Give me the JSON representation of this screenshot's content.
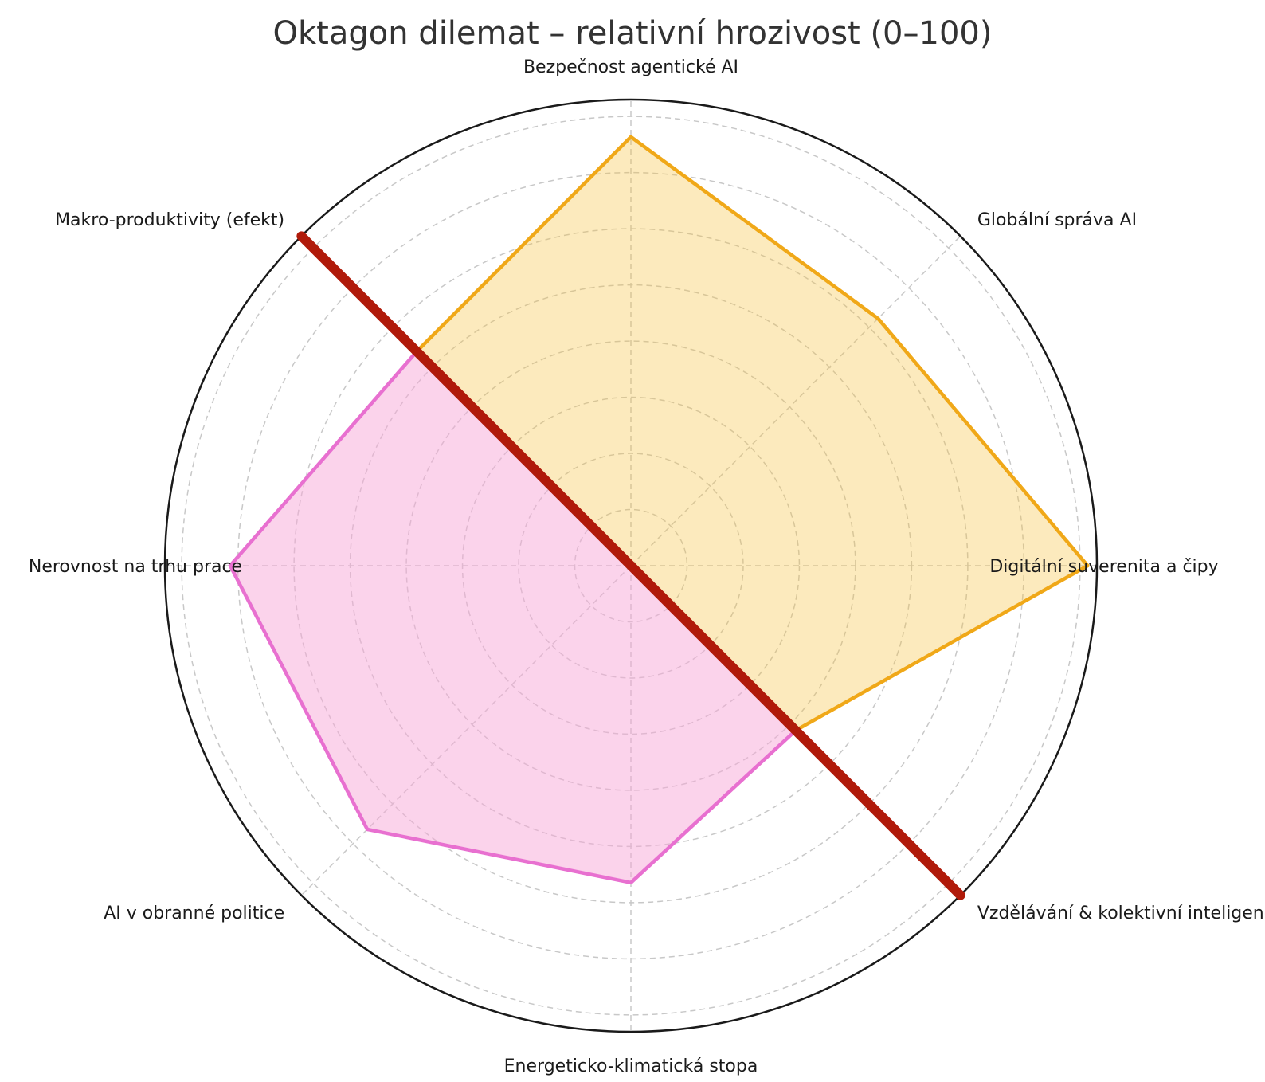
{
  "chart_data": {
    "type": "radar",
    "title": "Oktagon dilemat – relativní hrozivost (0–100)",
    "axes": [
      "Bezpečnost agentické AI",
      "Globální správa AI",
      "Digitální suverenita a čipy",
      "Vzdělávání & kolektivní inteligence",
      "Energeticko-klimatická stopa",
      "AI v obranné politice",
      "Nerovnost na trhu prace",
      "Makro-produktivity (efekt)"
    ],
    "values": [
      92,
      75,
      98,
      50,
      68,
      80,
      86,
      65
    ],
    "range": [
      0,
      100
    ],
    "rings": 8,
    "grid": true,
    "upper_fill_color": "#f5c242",
    "upper_line_color": "#f0a818",
    "lower_fill_color": "#f8a8d8",
    "lower_line_color": "#e870d0",
    "divider_color": "#b01a0a",
    "divider_axis_angle_deg": 135
  }
}
